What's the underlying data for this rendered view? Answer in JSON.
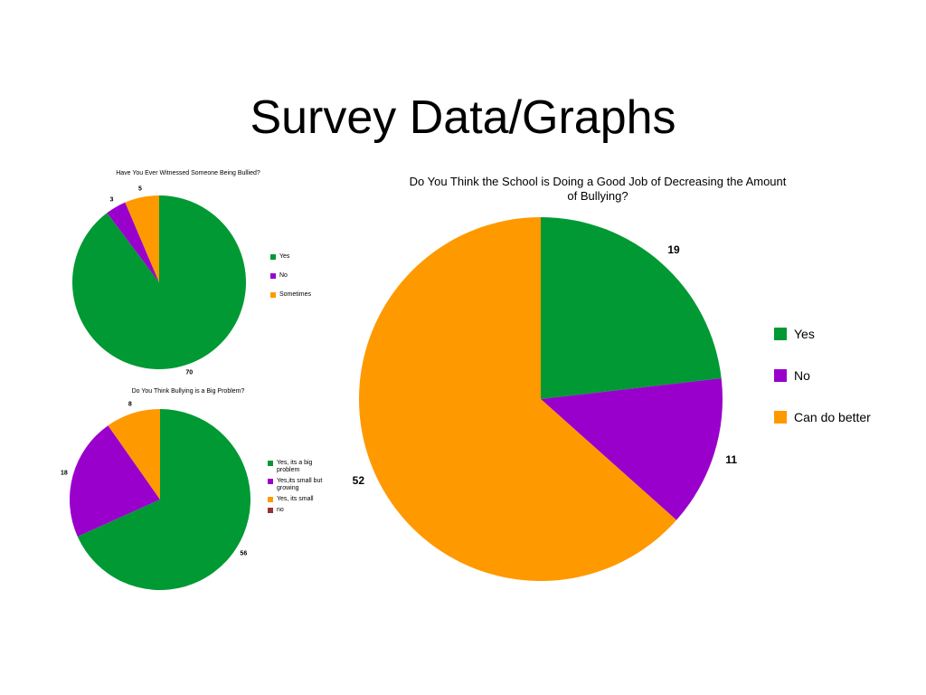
{
  "slide_title": "Survey Data/Graphs",
  "chart_data": [
    {
      "type": "pie",
      "title": "Have You Ever Witnessed Someone Being Bullied?",
      "categories": [
        "Yes",
        "No",
        "Sometimes"
      ],
      "values": [
        70,
        3,
        5
      ],
      "colors": [
        "#009933",
        "#9900cc",
        "#ff9900"
      ]
    },
    {
      "type": "pie",
      "title": "Do You Think Bullying is a Big Problem?",
      "categories": [
        "Yes, its a big problem",
        "Yes,its small but growing",
        "Yes, its small",
        "no"
      ],
      "values": [
        56,
        18,
        8,
        0
      ],
      "colors": [
        "#009933",
        "#9900cc",
        "#ff9900",
        "#993333"
      ]
    },
    {
      "type": "pie",
      "title": "Do You Think the School is Doing a Good Job of Decreasing the Amount of Bullying?",
      "categories": [
        "Yes",
        "No",
        "Can do better"
      ],
      "values": [
        19,
        11,
        52
      ],
      "colors": [
        "#009933",
        "#9900cc",
        "#ff9900"
      ]
    }
  ]
}
